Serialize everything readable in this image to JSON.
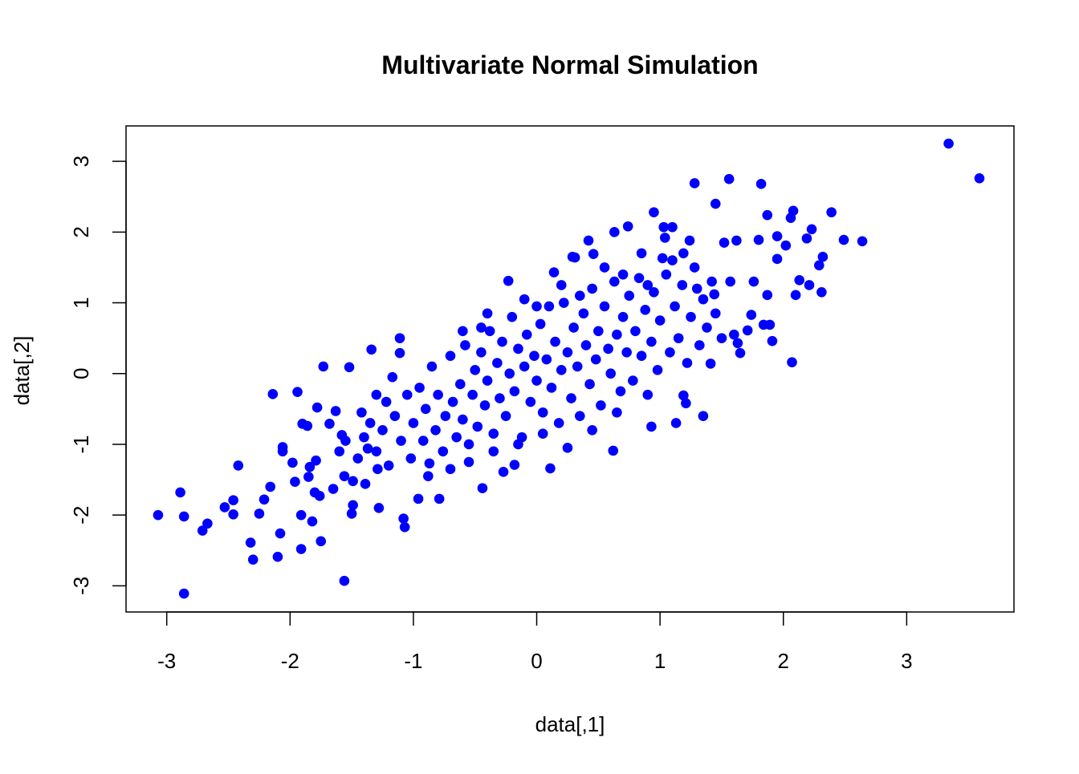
{
  "chart_data": {
    "type": "scatter",
    "title": "Multivariate Normal Simulation",
    "xlabel": "data[,1]",
    "ylabel": "data[,2]",
    "xlim": [
      -3.33,
      3.87
    ],
    "ylim": [
      -3.37,
      3.5
    ],
    "xticks": [
      -3,
      -2,
      -1,
      0,
      1,
      2,
      3
    ],
    "yticks": [
      -3,
      -2,
      -1,
      0,
      1,
      2,
      3
    ],
    "xtick_labels": [
      "-3",
      "-2",
      "-1",
      "0",
      "1",
      "2",
      "3"
    ],
    "ytick_labels": [
      "-3",
      "-2",
      "-1",
      "0",
      "1",
      "2",
      "3"
    ],
    "grid": false,
    "point_color": "#0000FF",
    "points": [
      [
        3.34,
        3.25
      ],
      [
        3.59,
        2.76
      ],
      [
        -3.07,
        -2.0
      ],
      [
        -2.86,
        -3.11
      ],
      [
        -2.89,
        -1.68
      ],
      [
        -2.86,
        -2.02
      ],
      [
        -2.71,
        -2.22
      ],
      [
        -2.67,
        -2.12
      ],
      [
        -2.53,
        -1.89
      ],
      [
        -2.46,
        -1.99
      ],
      [
        -2.46,
        -1.79
      ],
      [
        -2.42,
        -1.3
      ],
      [
        -2.3,
        -2.63
      ],
      [
        -2.32,
        -2.39
      ],
      [
        -2.25,
        -1.98
      ],
      [
        -2.21,
        -1.78
      ],
      [
        -2.16,
        -1.6
      ],
      [
        -2.14,
        -0.29
      ],
      [
        -2.1,
        -2.59
      ],
      [
        -2.08,
        -2.26
      ],
      [
        -2.06,
        -1.04
      ],
      [
        -2.06,
        -1.1
      ],
      [
        -1.98,
        -1.26
      ],
      [
        -1.96,
        -1.53
      ],
      [
        -1.94,
        -0.26
      ],
      [
        -1.91,
        -2.48
      ],
      [
        -1.91,
        -2.0
      ],
      [
        -1.9,
        -0.71
      ],
      [
        -1.86,
        -0.74
      ],
      [
        -1.85,
        -1.46
      ],
      [
        -1.84,
        -1.32
      ],
      [
        -1.82,
        -2.09
      ],
      [
        -1.8,
        -1.68
      ],
      [
        -1.79,
        -1.23
      ],
      [
        -1.75,
        -2.37
      ],
      [
        -1.76,
        -1.73
      ],
      [
        -1.78,
        -0.48
      ],
      [
        -1.73,
        0.1
      ],
      [
        -1.68,
        -0.71
      ],
      [
        -1.65,
        -1.63
      ],
      [
        -1.63,
        -0.53
      ],
      [
        -1.58,
        -0.87
      ],
      [
        -1.56,
        -2.93
      ],
      [
        -1.56,
        -1.45
      ],
      [
        -1.52,
        0.09
      ],
      [
        -1.5,
        -1.98
      ],
      [
        -1.49,
        -1.86
      ],
      [
        -1.49,
        -1.52
      ],
      [
        -1.39,
        -1.56
      ],
      [
        -1.37,
        -1.06
      ],
      [
        -1.34,
        0.34
      ],
      [
        -1.29,
        -1.35
      ],
      [
        -1.28,
        -1.9
      ],
      [
        -1.17,
        -0.05
      ],
      [
        -1.11,
        0.5
      ],
      [
        -1.11,
        0.29
      ],
      [
        -1.08,
        -2.05
      ],
      [
        -1.07,
        -2.17
      ],
      [
        -0.96,
        -1.77
      ],
      [
        -0.87,
        -1.27
      ],
      [
        -0.79,
        -1.77
      ],
      [
        -0.45,
        0.65
      ],
      [
        -0.44,
        -1.62
      ],
      [
        -0.27,
        -1.39
      ],
      [
        -0.23,
        1.31
      ],
      [
        -0.18,
        -1.29
      ],
      [
        0.11,
        -1.34
      ],
      [
        0.14,
        1.43
      ],
      [
        0.29,
        1.65
      ],
      [
        0.31,
        1.64
      ],
      [
        0.42,
        1.88
      ],
      [
        0.46,
        1.69
      ],
      [
        0.62,
        -1.09
      ],
      [
        0.63,
        2.0
      ],
      [
        0.74,
        2.08
      ],
      [
        0.93,
        -0.75
      ],
      [
        0.95,
        2.28
      ],
      [
        1.02,
        1.63
      ],
      [
        1.03,
        2.07
      ],
      [
        1.04,
        1.92
      ],
      [
        1.1,
        2.07
      ],
      [
        1.13,
        -0.7
      ],
      [
        1.19,
        -0.31
      ],
      [
        1.21,
        -0.42
      ],
      [
        1.19,
        1.7
      ],
      [
        1.24,
        1.88
      ],
      [
        1.28,
        2.69
      ],
      [
        1.35,
        -0.6
      ],
      [
        1.41,
        0.14
      ],
      [
        1.44,
        1.12
      ],
      [
        1.45,
        2.4
      ],
      [
        1.52,
        1.85
      ],
      [
        1.56,
        2.75
      ],
      [
        1.57,
        1.3
      ],
      [
        1.6,
        0.55
      ],
      [
        1.62,
        1.88
      ],
      [
        1.63,
        0.43
      ],
      [
        1.65,
        0.29
      ],
      [
        1.71,
        0.61
      ],
      [
        1.74,
        0.83
      ],
      [
        1.76,
        1.3
      ],
      [
        1.8,
        1.89
      ],
      [
        1.82,
        2.68
      ],
      [
        1.84,
        0.69
      ],
      [
        1.87,
        2.24
      ],
      [
        1.87,
        1.11
      ],
      [
        1.89,
        0.69
      ],
      [
        1.91,
        0.46
      ],
      [
        1.95,
        1.94
      ],
      [
        1.95,
        1.62
      ],
      [
        2.02,
        1.81
      ],
      [
        2.06,
        2.2
      ],
      [
        2.07,
        0.16
      ],
      [
        2.08,
        2.3
      ],
      [
        2.1,
        1.11
      ],
      [
        2.13,
        1.32
      ],
      [
        2.19,
        1.91
      ],
      [
        2.21,
        1.25
      ],
      [
        2.23,
        2.04
      ],
      [
        2.29,
        1.53
      ],
      [
        2.32,
        1.65
      ],
      [
        2.31,
        1.15
      ],
      [
        2.39,
        2.28
      ],
      [
        2.49,
        1.89
      ],
      [
        2.64,
        1.87
      ],
      [
        -1.45,
        -1.2
      ],
      [
        -1.4,
        -0.9
      ],
      [
        -1.35,
        -0.7
      ],
      [
        -1.3,
        -1.1
      ],
      [
        -1.25,
        -0.8
      ],
      [
        -1.22,
        -0.4
      ],
      [
        -1.2,
        -1.3
      ],
      [
        -1.15,
        -0.6
      ],
      [
        -1.1,
        -0.95
      ],
      [
        -1.05,
        -0.3
      ],
      [
        -1.02,
        -1.2
      ],
      [
        -1.0,
        -0.7
      ],
      [
        -0.95,
        -0.2
      ],
      [
        -0.92,
        -0.95
      ],
      [
        -0.9,
        -0.5
      ],
      [
        -0.88,
        -1.45
      ],
      [
        -0.85,
        0.1
      ],
      [
        -0.82,
        -0.8
      ],
      [
        -0.8,
        -0.3
      ],
      [
        -0.76,
        -1.1
      ],
      [
        -0.74,
        -0.6
      ],
      [
        -0.7,
        0.25
      ],
      [
        -0.68,
        -0.4
      ],
      [
        -0.65,
        -0.9
      ],
      [
        -0.62,
        -0.15
      ],
      [
        -0.6,
        -0.65
      ],
      [
        -0.58,
        0.4
      ],
      [
        -0.55,
        -1.0
      ],
      [
        -0.52,
        -0.3
      ],
      [
        -0.5,
        0.05
      ],
      [
        -0.48,
        -0.75
      ],
      [
        -0.45,
        0.3
      ],
      [
        -0.42,
        -0.45
      ],
      [
        -0.4,
        -0.1
      ],
      [
        -0.38,
        0.6
      ],
      [
        -0.35,
        -0.85
      ],
      [
        -0.32,
        0.15
      ],
      [
        -0.3,
        -0.35
      ],
      [
        -0.28,
        0.45
      ],
      [
        -0.25,
        -0.6
      ],
      [
        -0.22,
        0.0
      ],
      [
        -0.2,
        0.8
      ],
      [
        -0.18,
        -0.25
      ],
      [
        -0.15,
        0.35
      ],
      [
        -0.12,
        -0.9
      ],
      [
        -0.1,
        0.1
      ],
      [
        -0.08,
        0.55
      ],
      [
        -0.05,
        -0.4
      ],
      [
        -0.02,
        0.25
      ],
      [
        0.0,
        -0.1
      ],
      [
        0.03,
        0.7
      ],
      [
        0.05,
        -0.55
      ],
      [
        0.08,
        0.2
      ],
      [
        0.1,
        0.95
      ],
      [
        0.12,
        -0.2
      ],
      [
        0.15,
        0.45
      ],
      [
        0.18,
        -0.7
      ],
      [
        0.2,
        0.05
      ],
      [
        0.22,
        1.0
      ],
      [
        0.25,
        0.3
      ],
      [
        0.28,
        -0.35
      ],
      [
        0.3,
        0.65
      ],
      [
        0.33,
        0.1
      ],
      [
        0.35,
        -0.6
      ],
      [
        0.38,
        0.85
      ],
      [
        0.4,
        0.4
      ],
      [
        0.43,
        -0.15
      ],
      [
        0.45,
        1.2
      ],
      [
        0.48,
        0.2
      ],
      [
        0.5,
        0.6
      ],
      [
        0.52,
        -0.45
      ],
      [
        0.55,
        0.95
      ],
      [
        0.58,
        0.35
      ],
      [
        0.6,
        0.0
      ],
      [
        0.63,
        1.3
      ],
      [
        0.65,
        0.55
      ],
      [
        0.68,
        -0.25
      ],
      [
        0.7,
        0.8
      ],
      [
        0.73,
        0.3
      ],
      [
        0.75,
        1.1
      ],
      [
        0.78,
        -0.1
      ],
      [
        0.8,
        0.6
      ],
      [
        0.83,
        1.35
      ],
      [
        0.85,
        0.25
      ],
      [
        0.88,
        0.9
      ],
      [
        0.9,
        -0.3
      ],
      [
        0.93,
        0.45
      ],
      [
        0.95,
        1.15
      ],
      [
        0.98,
        0.05
      ],
      [
        1.0,
        0.75
      ],
      [
        1.05,
        1.4
      ],
      [
        1.08,
        0.3
      ],
      [
        1.12,
        0.95
      ],
      [
        1.15,
        0.5
      ],
      [
        1.18,
        1.25
      ],
      [
        1.22,
        0.15
      ],
      [
        1.25,
        0.8
      ],
      [
        1.28,
        1.5
      ],
      [
        1.32,
        0.4
      ],
      [
        1.35,
        1.05
      ],
      [
        1.38,
        0.65
      ],
      [
        1.42,
        1.3
      ],
      [
        1.45,
        0.85
      ],
      [
        1.5,
        0.5
      ],
      [
        -0.7,
        -1.35
      ],
      [
        -0.55,
        -1.25
      ],
      [
        -0.35,
        -1.1
      ],
      [
        -0.15,
        -1.0
      ],
      [
        0.05,
        -0.85
      ],
      [
        0.25,
        -1.05
      ],
      [
        0.45,
        -0.8
      ],
      [
        0.65,
        -0.55
      ],
      [
        -1.6,
        -1.1
      ],
      [
        -1.55,
        -0.95
      ],
      [
        -1.42,
        -0.55
      ],
      [
        -1.3,
        -0.3
      ],
      [
        -0.6,
        0.6
      ],
      [
        -0.4,
        0.85
      ],
      [
        -0.1,
        1.05
      ],
      [
        0.2,
        1.25
      ],
      [
        0.55,
        1.5
      ],
      [
        0.85,
        1.7
      ],
      [
        1.1,
        1.6
      ],
      [
        1.3,
        1.2
      ],
      [
        0.9,
        1.25
      ],
      [
        0.7,
        1.4
      ],
      [
        0.35,
        1.1
      ],
      [
        0.0,
        0.95
      ]
    ]
  }
}
